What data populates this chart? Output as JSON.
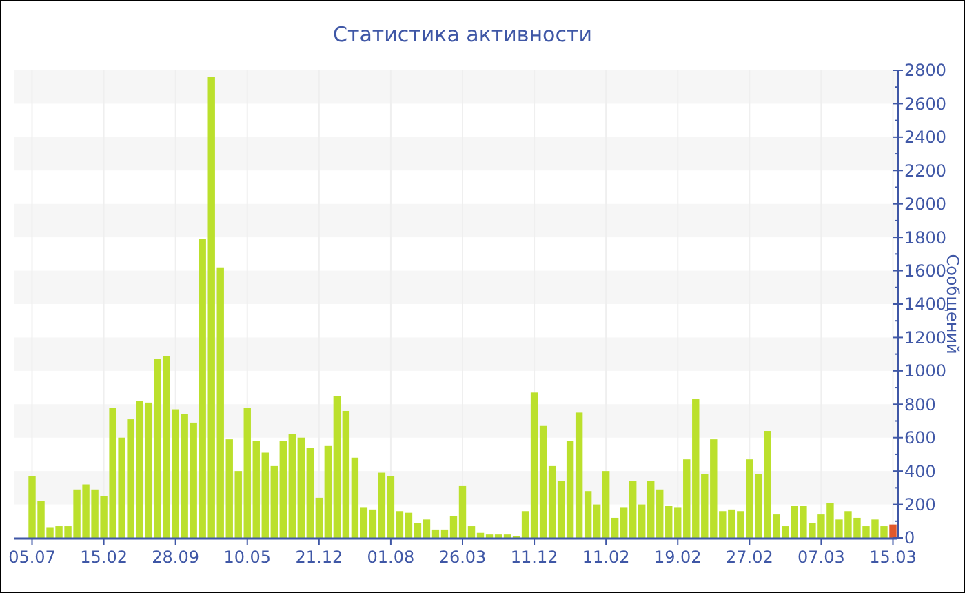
{
  "chart_data": {
    "type": "bar",
    "title": "Статистика активности",
    "ylabel": "Сообщений",
    "categories": [
      "05.07",
      null,
      null,
      null,
      null,
      null,
      null,
      null,
      "15.02",
      null,
      null,
      null,
      null,
      null,
      null,
      null,
      "28.09",
      null,
      null,
      null,
      null,
      null,
      null,
      null,
      "10.05",
      null,
      null,
      null,
      null,
      null,
      null,
      null,
      "21.12",
      null,
      null,
      null,
      null,
      null,
      null,
      null,
      "01.08",
      null,
      null,
      null,
      null,
      null,
      null,
      null,
      "26.03",
      null,
      null,
      null,
      null,
      null,
      null,
      null,
      "11.12",
      null,
      null,
      null,
      null,
      null,
      null,
      null,
      "11.02",
      null,
      null,
      null,
      null,
      null,
      null,
      null,
      "19.02",
      null,
      null,
      null,
      null,
      null,
      null,
      null,
      "27.02",
      null,
      null,
      null,
      null,
      null,
      null,
      null,
      "07.03",
      null,
      null,
      null,
      null,
      null,
      null,
      null,
      "15.03"
    ],
    "values": [
      370,
      220,
      60,
      70,
      70,
      290,
      320,
      290,
      250,
      780,
      600,
      710,
      820,
      810,
      1070,
      1090,
      770,
      740,
      690,
      1790,
      2760,
      1620,
      590,
      400,
      780,
      580,
      510,
      430,
      580,
      620,
      600,
      540,
      240,
      550,
      850,
      760,
      480,
      180,
      170,
      390,
      370,
      160,
      150,
      90,
      110,
      50,
      50,
      130,
      310,
      70,
      30,
      20,
      20,
      20,
      10,
      160,
      870,
      670,
      430,
      340,
      580,
      750,
      280,
      200,
      400,
      120,
      180,
      340,
      200,
      340,
      290,
      190,
      180,
      470,
      830,
      380,
      590,
      160,
      170,
      160,
      470,
      380,
      640,
      140,
      70,
      190,
      190,
      90,
      140,
      210,
      110,
      160,
      120,
      70,
      110,
      70,
      80
    ],
    "colors": [
      "#bbe02c",
      "#bbe02c",
      "#bbe02c",
      "#bbe02c",
      "#bbe02c",
      "#bbe02c",
      "#bbe02c",
      "#bbe02c",
      "#bbe02c",
      "#bbe02c",
      "#bbe02c",
      "#bbe02c",
      "#bbe02c",
      "#bbe02c",
      "#bbe02c",
      "#bbe02c",
      "#bbe02c",
      "#bbe02c",
      "#bbe02c",
      "#bbe02c",
      "#bbe02c",
      "#bbe02c",
      "#bbe02c",
      "#bbe02c",
      "#bbe02c",
      "#bbe02c",
      "#bbe02c",
      "#bbe02c",
      "#bbe02c",
      "#bbe02c",
      "#bbe02c",
      "#bbe02c",
      "#bbe02c",
      "#bbe02c",
      "#bbe02c",
      "#bbe02c",
      "#bbe02c",
      "#bbe02c",
      "#bbe02c",
      "#bbe02c",
      "#bbe02c",
      "#bbe02c",
      "#bbe02c",
      "#bbe02c",
      "#bbe02c",
      "#bbe02c",
      "#bbe02c",
      "#bbe02c",
      "#bbe02c",
      "#bbe02c",
      "#bbe02c",
      "#bbe02c",
      "#bbe02c",
      "#bbe02c",
      "#bbe02c",
      "#bbe02c",
      "#bbe02c",
      "#bbe02c",
      "#bbe02c",
      "#bbe02c",
      "#bbe02c",
      "#bbe02c",
      "#bbe02c",
      "#bbe02c",
      "#bbe02c",
      "#bbe02c",
      "#bbe02c",
      "#bbe02c",
      "#bbe02c",
      "#bbe02c",
      "#bbe02c",
      "#bbe02c",
      "#bbe02c",
      "#bbe02c",
      "#bbe02c",
      "#bbe02c",
      "#bbe02c",
      "#bbe02c",
      "#bbe02c",
      "#bbe02c",
      "#bbe02c",
      "#bbe02c",
      "#bbe02c",
      "#bbe02c",
      "#bbe02c",
      "#bbe02c",
      "#bbe02c",
      "#bbe02c",
      "#bbe02c",
      "#bbe02c",
      "#bbe02c",
      "#bbe02c",
      "#bbe02c",
      "#bbe02c",
      "#bbe02c",
      "#bbe02c",
      "#e0582a"
    ],
    "ylim": [
      0,
      2800
    ],
    "yticks": [
      0,
      {
        "value": 100,
        "label": null
      },
      200,
      {
        "value": 300,
        "label": null
      },
      400,
      {
        "value": 500,
        "label": null
      },
      600,
      {
        "value": 700,
        "label": null
      },
      800,
      {
        "value": 900,
        "label": null
      },
      1000,
      {
        "value": 1100,
        "label": null
      },
      1200,
      {
        "value": 1300,
        "label": null
      },
      1400,
      {
        "value": 1500,
        "label": null
      },
      1600,
      {
        "value": 1700,
        "label": null
      },
      1800,
      {
        "value": 1900,
        "label": null
      },
      2000,
      {
        "value": 2100,
        "label": null
      },
      2200,
      {
        "value": 2300,
        "label": null
      },
      2400,
      {
        "value": 2500,
        "label": null
      },
      2600,
      {
        "value": 2700,
        "label": null
      },
      2800
    ],
    "grid": true
  }
}
